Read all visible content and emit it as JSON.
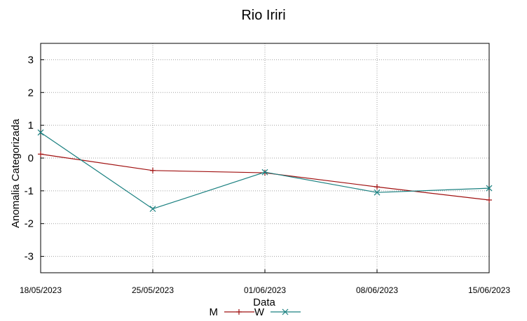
{
  "chart_data": {
    "type": "line",
    "title": "Rio Iriri",
    "xlabel": "Data",
    "ylabel": "Anomalia Categorizada",
    "categories": [
      "18/05/2023",
      "25/05/2023",
      "01/06/2023",
      "08/06/2023",
      "15/06/2023"
    ],
    "ylim": [
      -3.5,
      3.5
    ],
    "yticks": [
      3,
      2,
      1,
      0,
      -1,
      -2,
      -3
    ],
    "grid": true,
    "legend_position": "bottom",
    "series": [
      {
        "name": "M",
        "color": "#a01010",
        "marker": "plus",
        "x": [
          "18/05/2023",
          "25/05/2023",
          "01/06/2023",
          "08/06/2023",
          "15/06/2023"
        ],
        "values": [
          0.12,
          -0.38,
          -0.45,
          -0.88,
          -1.28
        ]
      },
      {
        "name": "W",
        "color": "#1a8080",
        "marker": "cross",
        "x": [
          "18/05/2023",
          "25/05/2023",
          "01/06/2023",
          "08/06/2023",
          "15/06/2023"
        ],
        "values": [
          0.78,
          -1.55,
          -0.43,
          -1.05,
          -0.92
        ]
      }
    ]
  }
}
